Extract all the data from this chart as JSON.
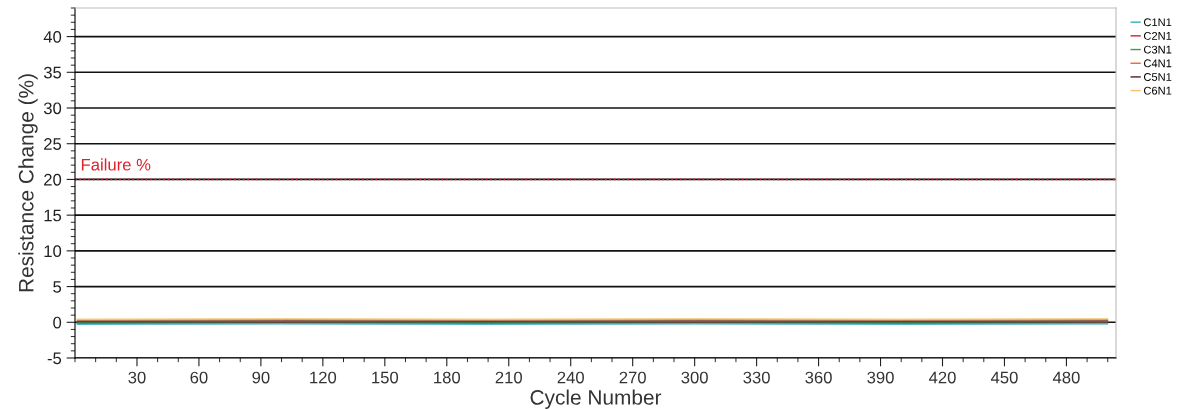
{
  "chart_data": {
    "type": "line",
    "xlabel": "Cycle Number",
    "ylabel": "Resistance Change (%)",
    "xlim": [
      0,
      504
    ],
    "xticks": [
      30,
      60,
      90,
      120,
      150,
      180,
      210,
      240,
      270,
      300,
      330,
      360,
      390,
      420,
      450,
      480
    ],
    "ylim": [
      -5,
      44
    ],
    "yticks": [
      -5,
      0,
      5,
      10,
      15,
      20,
      25,
      30,
      35,
      40
    ],
    "grid": "y",
    "legend": "top right",
    "line_style": "solid",
    "marker": "none",
    "ref_lines": [
      {
        "axis": "y",
        "value": 20,
        "label": "Failure %",
        "color": "#e0202a",
        "line_style": "dotted"
      }
    ],
    "series": [
      {
        "name": "C1N1",
        "color": "#3fa9c9",
        "x": [
          1,
          100,
          200,
          300,
          400,
          500
        ],
        "values": [
          -0.3,
          -0.25,
          -0.3,
          -0.25,
          -0.3,
          -0.25
        ]
      },
      {
        "name": "C2N1",
        "color": "#d0202e",
        "x": [
          1,
          100,
          200,
          300,
          400,
          500
        ],
        "values": [
          -0.15,
          -0.1,
          -0.15,
          -0.1,
          -0.15,
          -0.1
        ]
      },
      {
        "name": "C3N1",
        "color": "#3a9a5a",
        "x": [
          1,
          100,
          200,
          300,
          400,
          500
        ],
        "values": [
          0.0,
          0.05,
          0.0,
          0.05,
          0.0,
          0.05
        ]
      },
      {
        "name": "C4N1",
        "color": "#e06a2a",
        "x": [
          1,
          100,
          200,
          300,
          400,
          500
        ],
        "values": [
          0.3,
          0.35,
          0.3,
          0.35,
          0.3,
          0.35
        ]
      },
      {
        "name": "C5N1",
        "color": "#5a1a1a",
        "x": [
          1,
          100,
          200,
          300,
          400,
          500
        ],
        "values": [
          0.15,
          0.2,
          0.15,
          0.2,
          0.15,
          0.2
        ]
      },
      {
        "name": "C6N1",
        "color": "#f5c36a",
        "x": [
          1,
          100,
          200,
          300,
          400,
          500
        ],
        "values": [
          0.45,
          0.5,
          0.45,
          0.5,
          0.45,
          0.5
        ]
      }
    ]
  }
}
